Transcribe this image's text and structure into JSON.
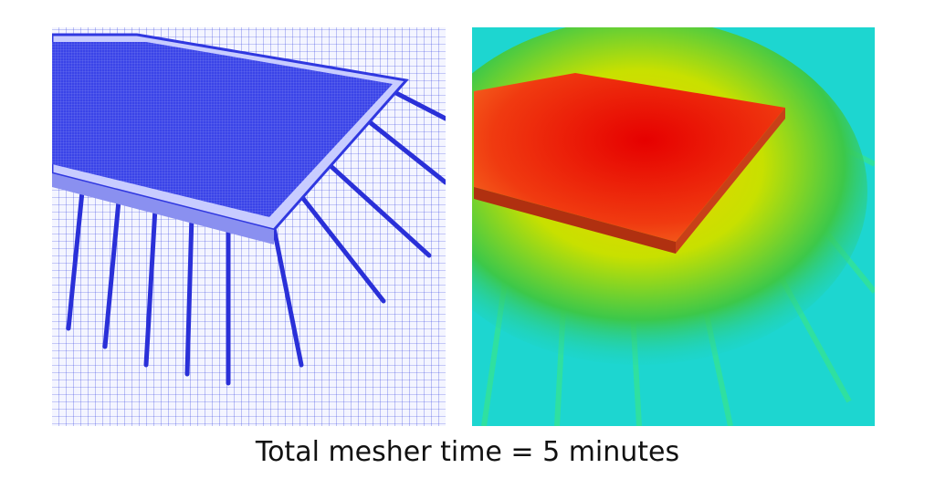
{
  "caption": "Total mesher time = 5 minutes"
}
